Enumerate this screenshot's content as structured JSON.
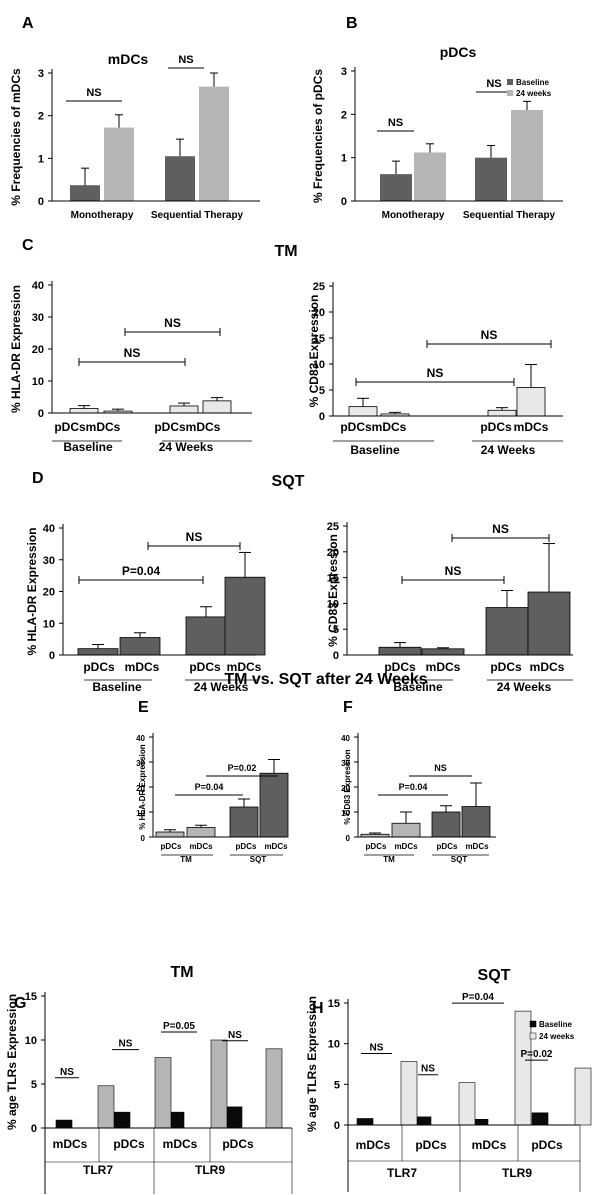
{
  "colors": {
    "dark": "#5f5f5f",
    "light": "#b5b5b5",
    "white": "#e8e8e8",
    "black": "#000000",
    "blackbar": "#0a0a0a"
  },
  "headings": {
    "tm": "TM",
    "sqt": "SQT",
    "comparison": "TM  vs. SQT after 24 Weeks",
    "tm_tlr": "TM",
    "sqt_tlr": "SQT"
  },
  "chart_data": [
    {
      "id": "A",
      "panel_label": "A",
      "type": "bar",
      "title": "mDCs",
      "ylabel": "% Frequencies of mDCs",
      "xlabel": "",
      "ylim": [
        0,
        3
      ],
      "yticks": [
        0,
        1,
        2,
        3
      ],
      "categories": [
        "Monotherapy",
        "Sequential Therapy"
      ],
      "series": [
        {
          "name": "Baseline",
          "color": "dark",
          "values": [
            0.37,
            1.05
          ],
          "errors": [
            0.4,
            0.4
          ]
        },
        {
          "name": "24 weeks",
          "color": "light",
          "values": [
            1.72,
            2.68
          ],
          "errors": [
            0.3,
            0.32
          ]
        }
      ],
      "annotations": [
        "NS",
        "NS"
      ],
      "legend": false
    },
    {
      "id": "B",
      "panel_label": "B",
      "type": "bar",
      "title": "pDCs",
      "ylabel": "% Frequencies of pDCs",
      "xlabel": "",
      "ylim": [
        0,
        3
      ],
      "yticks": [
        0,
        1,
        2,
        3
      ],
      "categories": [
        "Monotherapy",
        "Sequential Therapy"
      ],
      "series": [
        {
          "name": "Baseline",
          "color": "dark",
          "values": [
            0.62,
            1.0
          ],
          "errors": [
            0.3,
            0.28
          ]
        },
        {
          "name": "24 weeks",
          "color": "light",
          "values": [
            1.12,
            2.1
          ],
          "errors": [
            0.2,
            0.2
          ]
        }
      ],
      "annotations": [
        "NS",
        "NS"
      ],
      "legend": true,
      "legend_position": "top-right"
    },
    {
      "id": "C1",
      "panel_label": "C",
      "type": "bar",
      "title": "",
      "ylabel": "% HLA-DR Expression",
      "ylim": [
        0,
        40
      ],
      "yticks": [
        0,
        10,
        20,
        30,
        40
      ],
      "tick_labels": [
        "pDCs",
        "mDCs",
        "pDCs",
        "mDCs"
      ],
      "group_labels": [
        "Baseline",
        "24 Weeks"
      ],
      "values": [
        1.4,
        0.6,
        2.2,
        3.8
      ],
      "errors": [
        0.9,
        0.6,
        0.9,
        1.0
      ],
      "colors": [
        "white",
        "white",
        "white",
        "white"
      ],
      "annotations": [
        "NS",
        "NS"
      ]
    },
    {
      "id": "C2",
      "panel_label": "",
      "type": "bar",
      "title": "",
      "ylabel": "% CD83 Expression",
      "ylim": [
        0,
        25
      ],
      "yticks": [
        0,
        5,
        10,
        15,
        20,
        25
      ],
      "tick_labels": [
        "pDCs",
        "mDCs",
        "pDCs",
        "mDCs"
      ],
      "group_labels": [
        "Baseline",
        "24 Weeks"
      ],
      "values": [
        1.8,
        0.4,
        1.1,
        5.5
      ],
      "errors": [
        1.6,
        0.3,
        0.5,
        4.4
      ],
      "colors": [
        "white",
        "white",
        "white",
        "white"
      ],
      "annotations": [
        "NS",
        "NS"
      ]
    },
    {
      "id": "D1",
      "panel_label": "D",
      "type": "bar",
      "title": "",
      "ylabel": "% HLA-DR Expression",
      "ylim": [
        0,
        40
      ],
      "yticks": [
        0,
        10,
        20,
        30,
        40
      ],
      "tick_labels": [
        "pDCs",
        "mDCs",
        "pDCs",
        "mDCs"
      ],
      "group_labels": [
        "Baseline",
        "24 Weeks"
      ],
      "values": [
        2.0,
        5.5,
        12.0,
        24.5
      ],
      "errors": [
        1.3,
        1.5,
        3.2,
        7.8
      ],
      "colors": [
        "dark",
        "dark",
        "dark",
        "dark"
      ],
      "annotations": [
        "P=0.04",
        "NS"
      ]
    },
    {
      "id": "D2",
      "panel_label": "",
      "type": "bar",
      "title": "",
      "ylabel": "% CD83 Expression",
      "ylim": [
        0,
        25
      ],
      "yticks": [
        0,
        5,
        10,
        15,
        20,
        25
      ],
      "tick_labels": [
        "pDCs",
        "mDCs",
        "pDCs",
        "mDCs"
      ],
      "group_labels": [
        "Baseline",
        "24 Weeks"
      ],
      "values": [
        1.5,
        1.2,
        9.2,
        12.2
      ],
      "errors": [
        0.9,
        0.2,
        3.3,
        9.4
      ],
      "colors": [
        "dark",
        "dark",
        "dark",
        "dark"
      ],
      "annotations": [
        "NS",
        "NS"
      ]
    },
    {
      "id": "E",
      "panel_label": "E",
      "type": "bar",
      "title": "",
      "ylabel": "% HLA-DR Expression",
      "ylim": [
        0,
        40
      ],
      "yticks": [
        0,
        10,
        20,
        30,
        40
      ],
      "tick_labels": [
        "pDCs",
        "mDCs",
        "pDCs",
        "mDCs"
      ],
      "group_labels": [
        "TM",
        "SQT"
      ],
      "values": [
        2.0,
        3.8,
        12.0,
        25.5
      ],
      "errors": [
        0.9,
        0.9,
        3.2,
        5.5
      ],
      "colors": [
        "light",
        "light",
        "dark",
        "dark"
      ],
      "annotations": [
        "P=0.04",
        "P=0.02"
      ]
    },
    {
      "id": "F",
      "panel_label": "F",
      "type": "bar",
      "title": "",
      "ylabel": "% CD83 Expression",
      "ylim": [
        0,
        40
      ],
      "yticks": [
        0,
        10,
        20,
        30,
        40
      ],
      "tick_labels": [
        "pDCs",
        "mDCs",
        "pDCs",
        "mDCs"
      ],
      "group_labels": [
        "TM",
        "SQT"
      ],
      "values": [
        1.1,
        5.5,
        10.0,
        12.2
      ],
      "errors": [
        0.5,
        4.5,
        2.5,
        9.4
      ],
      "colors": [
        "light",
        "light",
        "dark",
        "dark"
      ],
      "annotations": [
        "P=0.04",
        "NS"
      ]
    },
    {
      "id": "G",
      "panel_label": "G",
      "type": "bar",
      "title": "",
      "ylabel": "% age TLRs Expression",
      "ylim": [
        0,
        15
      ],
      "yticks": [
        0,
        5,
        10,
        15
      ],
      "categories": [
        "mDCs",
        "pDCs",
        "mDCs",
        "pDCs"
      ],
      "group_labels": [
        "TLR7",
        "TLR9"
      ],
      "series": [
        {
          "name": "Baseline",
          "color": "blackbar",
          "values": [
            0.9,
            1.8,
            1.8,
            2.4
          ]
        },
        {
          "name": "24 weeks",
          "color": "light",
          "values": [
            4.8,
            8.0,
            10.0,
            9.0
          ]
        }
      ],
      "annotations": [
        "NS",
        "NS",
        "P=0.05",
        "NS"
      ]
    },
    {
      "id": "H",
      "panel_label": "H",
      "type": "bar",
      "title": "",
      "ylabel": "% age TLRs Expression",
      "ylim": [
        0,
        15
      ],
      "yticks": [
        0,
        5,
        10,
        15
      ],
      "categories": [
        "mDCs",
        "pDCs",
        "mDCs",
        "pDCs"
      ],
      "group_labels": [
        "TLR7",
        "TLR9"
      ],
      "series": [
        {
          "name": "Baseline",
          "color": "blackbar",
          "values": [
            0.8,
            1.0,
            0.7,
            1.5
          ]
        },
        {
          "name": "24 weeks",
          "color": "white",
          "values": [
            7.8,
            5.2,
            14.0,
            7.0
          ]
        }
      ],
      "annotations": [
        "NS",
        "NS",
        "P=0.04",
        "P=0.02"
      ],
      "legend": true,
      "legend_position": "top-right"
    }
  ]
}
